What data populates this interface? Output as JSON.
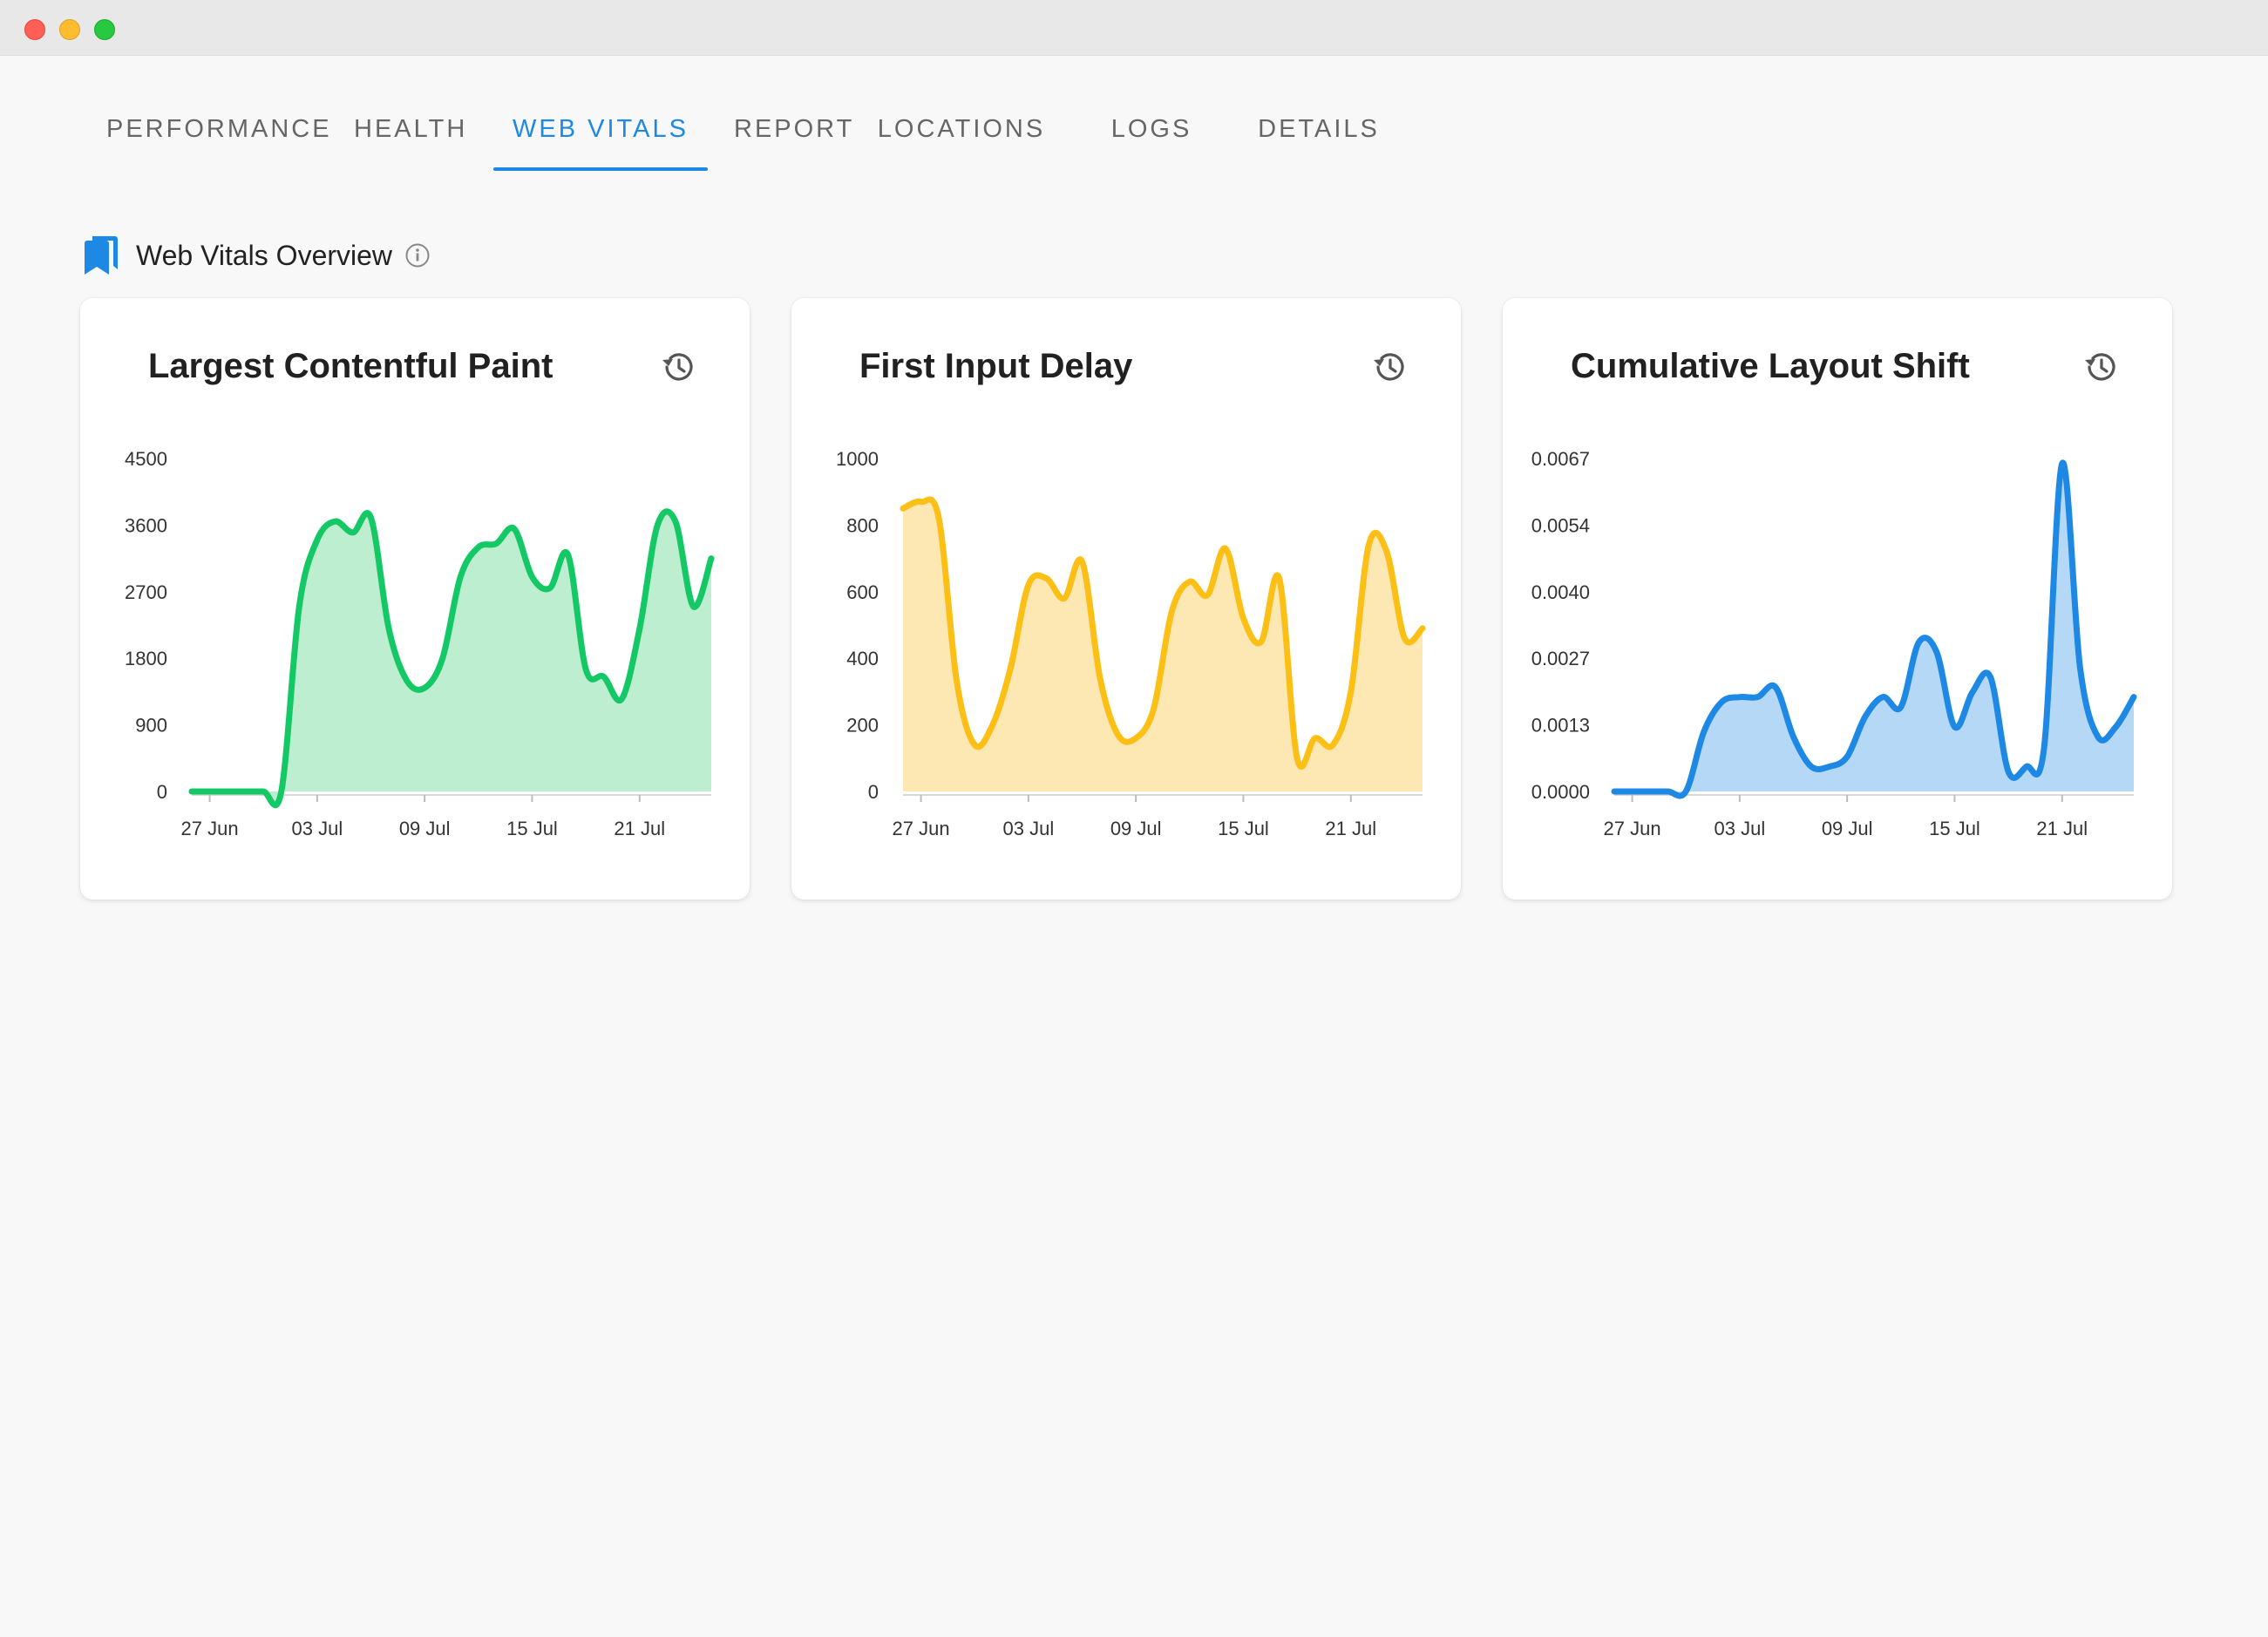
{
  "window": {
    "title": ""
  },
  "tabs": [
    {
      "label": "PERFORMANCE",
      "active": false
    },
    {
      "label": "HEALTH",
      "active": false
    },
    {
      "label": "WEB VITALS",
      "active": true
    },
    {
      "label": "REPORT",
      "active": false
    },
    {
      "label": "LOCATIONS",
      "active": false
    },
    {
      "label": "LOGS",
      "active": false
    },
    {
      "label": "DETAILS",
      "active": false
    }
  ],
  "section": {
    "title": "Web Vitals Overview",
    "icon": "bookmarks-icon",
    "info_icon": "info-icon"
  },
  "colors": {
    "accent": "#1e88e5",
    "lcp": "#14c965",
    "fid": "#fbbf16",
    "cls": "#1e88e5"
  },
  "cards": [
    {
      "title": "Largest Contentful Paint",
      "action_icon": "history-icon"
    },
    {
      "title": "First Input Delay",
      "action_icon": "history-icon"
    },
    {
      "title": "Cumulative Layout Shift",
      "action_icon": "history-icon"
    }
  ],
  "chart_data": [
    {
      "type": "area",
      "title": "Largest Contentful Paint",
      "color": "#14c965",
      "fill": "#bdeecf",
      "yticks": [
        "0",
        "900",
        "1800",
        "2700",
        "3600",
        "4500"
      ],
      "ylim": [
        0,
        4500
      ],
      "xticks": [
        "27 Jun",
        "03 Jul",
        "09 Jul",
        "15 Jul",
        "21 Jul"
      ],
      "x": [
        "26 Jun",
        "27 Jun",
        "28 Jun",
        "29 Jun",
        "30 Jun",
        "01 Jul",
        "02 Jul",
        "03 Jul",
        "04 Jul",
        "05 Jul",
        "06 Jul",
        "07 Jul",
        "08 Jul",
        "09 Jul",
        "10 Jul",
        "11 Jul",
        "12 Jul",
        "13 Jul",
        "14 Jul",
        "15 Jul",
        "16 Jul",
        "17 Jul",
        "18 Jul",
        "19 Jul",
        "20 Jul",
        "21 Jul",
        "22 Jul",
        "23 Jul",
        "24 Jul",
        "25 Jul"
      ],
      "values": [
        0,
        0,
        0,
        0,
        0,
        0,
        2500,
        3400,
        3650,
        3500,
        3700,
        2200,
        1500,
        1400,
        1800,
        2900,
        3300,
        3350,
        3550,
        2900,
        2750,
        3200,
        1650,
        1550,
        1250,
        2200,
        3600,
        3650,
        2500,
        3150
      ],
      "grid": false
    },
    {
      "type": "area",
      "title": "First Input Delay",
      "color": "#fbbf16",
      "fill": "#fde8b3",
      "yticks": [
        "0",
        "200",
        "400",
        "600",
        "800",
        "1000"
      ],
      "ylim": [
        0,
        1000
      ],
      "xticks": [
        "27 Jun",
        "03 Jul",
        "09 Jul",
        "15 Jul",
        "21 Jul"
      ],
      "x": [
        "26 Jun",
        "27 Jun",
        "28 Jun",
        "29 Jun",
        "30 Jun",
        "01 Jul",
        "02 Jul",
        "03 Jul",
        "04 Jul",
        "05 Jul",
        "06 Jul",
        "07 Jul",
        "08 Jul",
        "09 Jul",
        "10 Jul",
        "11 Jul",
        "12 Jul",
        "13 Jul",
        "14 Jul",
        "15 Jul",
        "16 Jul",
        "17 Jul",
        "18 Jul",
        "19 Jul",
        "20 Jul",
        "21 Jul",
        "22 Jul",
        "23 Jul",
        "24 Jul",
        "25 Jul"
      ],
      "values": [
        850,
        870,
        820,
        330,
        140,
        200,
        370,
        620,
        640,
        580,
        690,
        340,
        170,
        160,
        250,
        540,
        630,
        590,
        730,
        520,
        450,
        640,
        100,
        160,
        140,
        300,
        740,
        720,
        460,
        490
      ],
      "grid": false
    },
    {
      "type": "area",
      "title": "Cumulative Layout Shift",
      "color": "#1e88e5",
      "fill": "#b6d8f7",
      "yticks": [
        "0.0000",
        "0.0013",
        "0.0027",
        "0.0040",
        "0.0054",
        "0.0067"
      ],
      "ylim": [
        0,
        0.0067
      ],
      "xticks": [
        "27 Jun",
        "03 Jul",
        "09 Jul",
        "15 Jul",
        "21 Jul"
      ],
      "x": [
        "26 Jun",
        "27 Jun",
        "28 Jun",
        "29 Jun",
        "30 Jun",
        "01 Jul",
        "02 Jul",
        "03 Jul",
        "04 Jul",
        "05 Jul",
        "06 Jul",
        "07 Jul",
        "08 Jul",
        "09 Jul",
        "10 Jul",
        "11 Jul",
        "12 Jul",
        "13 Jul",
        "14 Jul",
        "15 Jul",
        "16 Jul",
        "17 Jul",
        "18 Jul",
        "19 Jul",
        "20 Jul",
        "21 Jul",
        "22 Jul",
        "23 Jul",
        "24 Jul",
        "25 Jul"
      ],
      "values": [
        0,
        0,
        0,
        0,
        0,
        0.0012,
        0.0018,
        0.0019,
        0.0019,
        0.0021,
        0.0011,
        0.0005,
        0.0005,
        0.0007,
        0.0015,
        0.0019,
        0.0017,
        0.003,
        0.0028,
        0.0013,
        0.002,
        0.0023,
        0.0004,
        0.0005,
        0.0009,
        0.0066,
        0.0025,
        0.0011,
        0.0013,
        0.0019
      ],
      "grid": false
    }
  ]
}
